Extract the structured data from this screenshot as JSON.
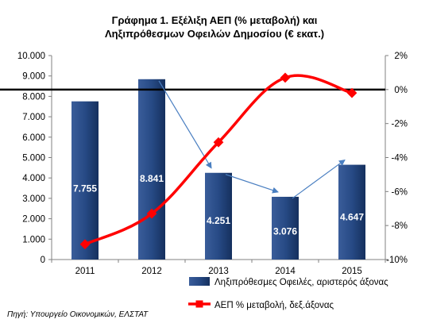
{
  "chart_data": {
    "type": "bar+line",
    "title_lines": [
      "Γράφημα 1. Εξέλιξη ΑΕΠ (% μεταβολή) και",
      "Ληξιπρόθεσμων Οφειλών Δημοσίου  (€ εκατ.)"
    ],
    "categories": [
      "2011",
      "2012",
      "2013",
      "2014",
      "2015"
    ],
    "series": [
      {
        "name": "Ληξιπρόθεσμες Οφειλές, αριστερός άξονας",
        "type": "bar",
        "axis": "left",
        "values": [
          7755,
          8841,
          4251,
          3076,
          4647
        ],
        "labels": [
          "7.755",
          "8.841",
          "4.251",
          "3.076",
          "4.647"
        ],
        "color": "#1f3f77"
      },
      {
        "name": "ΑΕΠ % μεταβολή,  δεξ.άξονας",
        "type": "line",
        "axis": "right",
        "values": [
          -9.1,
          -7.3,
          -3.1,
          0.7,
          -0.2
        ],
        "color": "#ff0000"
      }
    ],
    "y_left": {
      "min": 0,
      "max": 10000,
      "step": 1000,
      "tick_labels": [
        "0",
        "1.000",
        "2.000",
        "3.000",
        "4.000",
        "5.000",
        "6.000",
        "7.000",
        "8.000",
        "9.000",
        "10.000"
      ]
    },
    "y_right": {
      "min": -10,
      "max": 2,
      "step": 2,
      "tick_labels": [
        "-10%",
        "-8%",
        "-6%",
        "-4%",
        "-2%",
        "0%",
        "2%"
      ]
    },
    "zero_line": "right axis 0%",
    "trend_arrows": [
      [
        "2012",
        "2013"
      ],
      [
        "2013",
        "2014"
      ],
      [
        "2014",
        "2015"
      ]
    ],
    "grid": false,
    "legend": "bottom-right"
  },
  "source": "Πηγή: Υπουργείο Οικονομικών, ΕΛΣΤΑΤ"
}
